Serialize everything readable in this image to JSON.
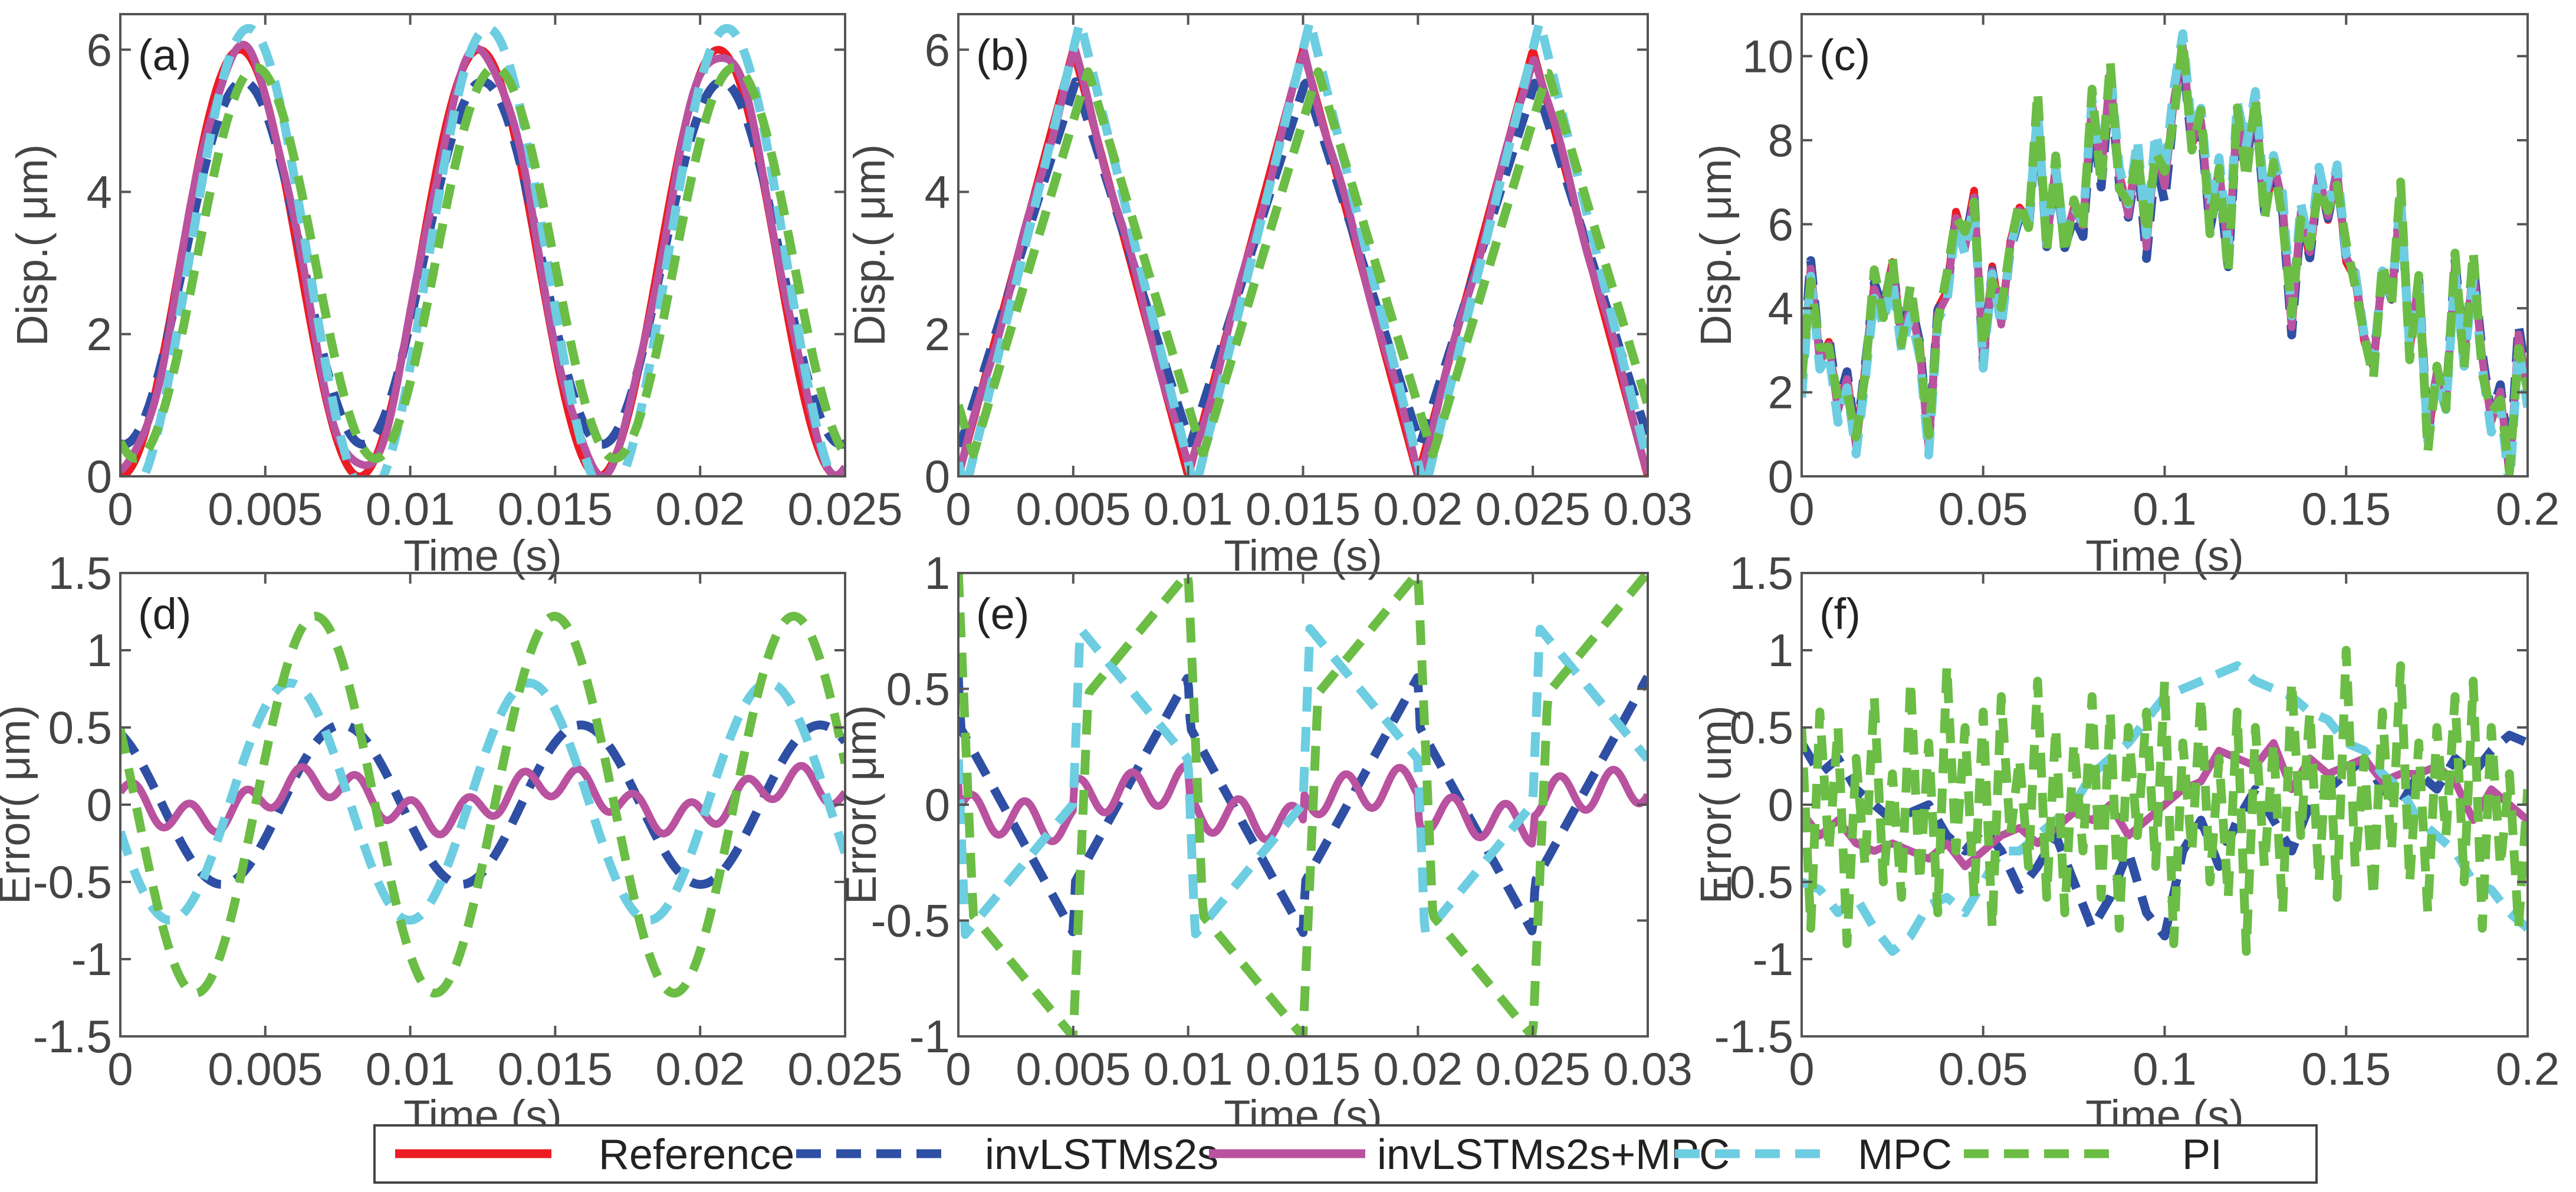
{
  "legend": {
    "placement": "bottom-center",
    "entries": [
      {
        "name": "Reference",
        "color": "#ed1c24",
        "style": "solid"
      },
      {
        "name": "invLSTMs2s",
        "color": "#2e4fa3",
        "style": "dashed"
      },
      {
        "name": "invLSTMs2s+MPC",
        "color": "#b9529f",
        "style": "solid"
      },
      {
        "name": "MPC",
        "color": "#6dcde1",
        "style": "dashed"
      },
      {
        "name": "PI",
        "color": "#6bbd45",
        "style": "dashed"
      }
    ]
  },
  "chart_data": [
    {
      "type": "line",
      "label": "(a)",
      "xlabel": "Time (s)",
      "ylabel": "Disp.( μm)",
      "xlim": [
        0,
        0.025
      ],
      "ylim": [
        0,
        6.5
      ],
      "xticks": [
        "0",
        "0.005",
        "0.01",
        "0.015",
        "0.02",
        "0.025"
      ],
      "yticks": [
        "0",
        "2",
        "4",
        "6"
      ],
      "waveform": "sine",
      "period": 0.00825,
      "series": [
        {
          "name": "Reference",
          "offset": 3.0,
          "amp": 3.0,
          "lag": 0,
          "ripple": 0
        },
        {
          "name": "invLSTMs2s",
          "offset": 3.0,
          "amp": 2.55,
          "lag": 0.00012,
          "ripple": 0
        },
        {
          "name": "invLSTMs2s+MPC",
          "offset": 3.03,
          "amp": 2.95,
          "lag": 5e-05,
          "ripple": 0.1
        },
        {
          "name": "MPC",
          "offset": 3.02,
          "amp": 3.28,
          "lag": 0.0003,
          "ripple": 0
        },
        {
          "name": "PI",
          "offset": 3.0,
          "amp": 2.75,
          "lag": 0.00055,
          "ripple": 0
        }
      ]
    },
    {
      "type": "line",
      "label": "(b)",
      "xlabel": "Time (s)",
      "ylabel": "Disp.( μm)",
      "xlim": [
        0,
        0.03
      ],
      "ylim": [
        0,
        6.5
      ],
      "xticks": [
        "0",
        "0.005",
        "0.01",
        "0.015",
        "0.02",
        "0.025",
        "0.03"
      ],
      "yticks": [
        "0",
        "2",
        "4",
        "6"
      ],
      "waveform": "triangle",
      "period": 0.01,
      "series": [
        {
          "name": "Reference",
          "offset": 3.0,
          "amp": 3.0,
          "lag": 0,
          "ripple": 0
        },
        {
          "name": "invLSTMs2s",
          "offset": 3.0,
          "amp": 2.55,
          "lag": 0.0001,
          "ripple": 0
        },
        {
          "name": "invLSTMs2s+MPC",
          "offset": 3.0,
          "amp": 2.97,
          "lag": 5e-05,
          "ripple": 0.08
        },
        {
          "name": "MPC",
          "offset": 3.1,
          "amp": 3.3,
          "lag": 0.0003,
          "ripple": 0
        },
        {
          "name": "PI",
          "offset": 3.0,
          "amp": 2.7,
          "lag": 0.00065,
          "ripple": 0
        }
      ]
    },
    {
      "type": "line",
      "label": "(c)",
      "xlabel": "Time (s)",
      "ylabel": "Disp.( μm)",
      "xlim": [
        0,
        0.2
      ],
      "ylim": [
        0,
        11
      ],
      "xticks": [
        "0",
        "0.05",
        "0.1",
        "0.15",
        "0.2"
      ],
      "yticks": [
        "0",
        "2",
        "4",
        "6",
        "8",
        "10"
      ],
      "waveform": "random",
      "dt": 0.0025,
      "reference": [
        2.1,
        5.0,
        2.8,
        3.2,
        1.6,
        2.4,
        0.8,
        2.6,
        4.6,
        4.0,
        5.1,
        3.4,
        4.2,
        3.2,
        0.8,
        4.0,
        4.4,
        6.3,
        5.6,
        6.8,
        2.8,
        5.0,
        3.7,
        5.6,
        6.4,
        6.1,
        8.8,
        5.6,
        7.4,
        5.6,
        6.4,
        6.0,
        8.9,
        7.2,
        9.6,
        7.2,
        6.3,
        7.8,
        5.5,
        7.9,
        6.9,
        8.9,
        10.2,
        7.9,
        8.4,
        6.0,
        7.2,
        5.1,
        8.5,
        7.5,
        8.8,
        6.3,
        7.3,
        6.4,
        3.5,
        6.2,
        5.2,
        7.1,
        6.1,
        7.2,
        5.1,
        4.7,
        3.2,
        2.6,
        4.8,
        4.2,
        6.6,
        3.0,
        4.6,
        0.9,
        2.4,
        1.7,
        5.0,
        2.8,
        5.0,
        2.8,
        1.3,
        2.0,
        0.0,
        3.4,
        2.0
      ],
      "series_from_errors_of": "(f)"
    },
    {
      "type": "line",
      "label": "(d)",
      "xlabel": "Time (s)",
      "ylabel": "Error( μm)",
      "xlim": [
        0,
        0.025
      ],
      "ylim": [
        -1.5,
        1.5
      ],
      "xticks": [
        "0",
        "0.005",
        "0.01",
        "0.015",
        "0.02",
        "0.025"
      ],
      "yticks": [
        "-1.5",
        "-1",
        "-0.5",
        "0",
        "0.5",
        "1",
        "1.5"
      ],
      "error_of": "(a)",
      "series": [
        "invLSTMs2s",
        "invLSTMs2s+MPC",
        "MPC",
        "PI"
      ]
    },
    {
      "type": "line",
      "label": "(e)",
      "xlabel": "Time (s)",
      "ylabel": "Error( μm)",
      "xlim": [
        0,
        0.03
      ],
      "ylim": [
        -1,
        1
      ],
      "xticks": [
        "0",
        "0.005",
        "0.01",
        "0.015",
        "0.02",
        "0.025",
        "0.03"
      ],
      "yticks": [
        "-1",
        "-0.5",
        "0",
        "0.5",
        "1"
      ],
      "error_of": "(b)",
      "series": [
        "invLSTMs2s",
        "invLSTMs2s+MPC",
        "MPC",
        "PI"
      ]
    },
    {
      "type": "line",
      "label": "(f)",
      "xlabel": "Time (s)",
      "ylabel": "Error( um)",
      "xlim": [
        0,
        0.2
      ],
      "ylim": [
        -1.5,
        1.5
      ],
      "xticks": [
        "0",
        "0.05",
        "0.1",
        "0.15",
        "0.2"
      ],
      "yticks": [
        "-1.5",
        "-1",
        "-0.5",
        "0",
        "0.5",
        "1",
        "1.5"
      ],
      "errors": [
        {
          "name": "invLSTMs2s",
          "dt": 0.005,
          "values": [
            0.4,
            0.2,
            0.3,
            0.1,
            0.0,
            -0.1,
            -0.05,
            0.0,
            -0.2,
            -0.3,
            -0.15,
            -0.3,
            -0.55,
            -0.4,
            -0.2,
            -0.5,
            -0.8,
            -0.6,
            -0.3,
            -0.7,
            -0.85,
            -0.3,
            -0.1,
            -0.4,
            -0.1,
            0.1,
            -0.1,
            -0.3,
            0.0,
            0.1,
            0.2,
            0.3,
            0.1,
            0.0,
            0.2,
            0.1,
            0.3,
            0.2,
            0.35,
            0.45,
            0.4
          ]
        },
        {
          "name": "invLSTMs2s+MPC",
          "dt": 0.005,
          "values": [
            -0.05,
            -0.2,
            -0.1,
            -0.25,
            -0.3,
            -0.25,
            -0.3,
            -0.35,
            -0.25,
            -0.4,
            -0.3,
            -0.2,
            -0.15,
            -0.25,
            -0.15,
            -0.05,
            -0.1,
            0.0,
            -0.2,
            -0.1,
            0.0,
            0.1,
            0.15,
            0.35,
            0.3,
            0.25,
            0.4,
            0.1,
            0.3,
            0.2,
            0.25,
            0.3,
            0.15,
            0.2,
            0.2,
            0.25,
            0.15,
            -0.1,
            0.1,
            0.0,
            -0.1
          ]
        },
        {
          "name": "MPC",
          "dt": 0.005,
          "values": [
            -0.5,
            -0.55,
            -0.7,
            -0.6,
            -0.8,
            -0.95,
            -0.85,
            -0.65,
            -0.6,
            -0.7,
            -0.5,
            -0.3,
            -0.3,
            -0.2,
            -0.1,
            0.0,
            0.2,
            0.3,
            0.4,
            0.55,
            0.7,
            0.75,
            0.8,
            0.85,
            0.9,
            0.8,
            0.75,
            0.7,
            0.6,
            0.55,
            0.4,
            0.35,
            0.2,
            0.1,
            -0.1,
            -0.2,
            -0.3,
            -0.5,
            -0.55,
            -0.7,
            -0.8
          ]
        },
        {
          "name": "PI",
          "dt": 0.0025,
          "values": [
            0.5,
            -0.8,
            0.6,
            -0.3,
            0.5,
            -0.9,
            0.3,
            -0.4,
            0.7,
            -0.5,
            0.2,
            -0.6,
            0.8,
            -0.5,
            0.4,
            -0.7,
            0.9,
            -0.3,
            0.5,
            -0.6,
            0.6,
            -0.8,
            0.7,
            -0.2,
            0.3,
            -0.4,
            0.8,
            -0.6,
            0.5,
            -0.7,
            0.4,
            -0.3,
            0.7,
            -0.6,
            0.6,
            -0.8,
            0.5,
            -0.2,
            0.6,
            -0.4,
            0.8,
            -0.9,
            0.4,
            -0.3,
            0.7,
            -0.5,
            0.3,
            -0.6,
            0.6,
            -0.95,
            0.5,
            -0.4,
            0.4,
            -0.7,
            0.8,
            -0.2,
            0.6,
            -0.5,
            0.5,
            -0.6,
            1.0,
            -0.4,
            0.3,
            -0.6,
            0.6,
            -0.3,
            0.9,
            -0.5,
            0.4,
            -0.7,
            0.5,
            -0.2,
            0.7,
            -0.5,
            0.8,
            -0.8,
            0.5,
            -0.4,
            0.2,
            -0.8,
            0.1
          ]
        }
      ]
    }
  ]
}
